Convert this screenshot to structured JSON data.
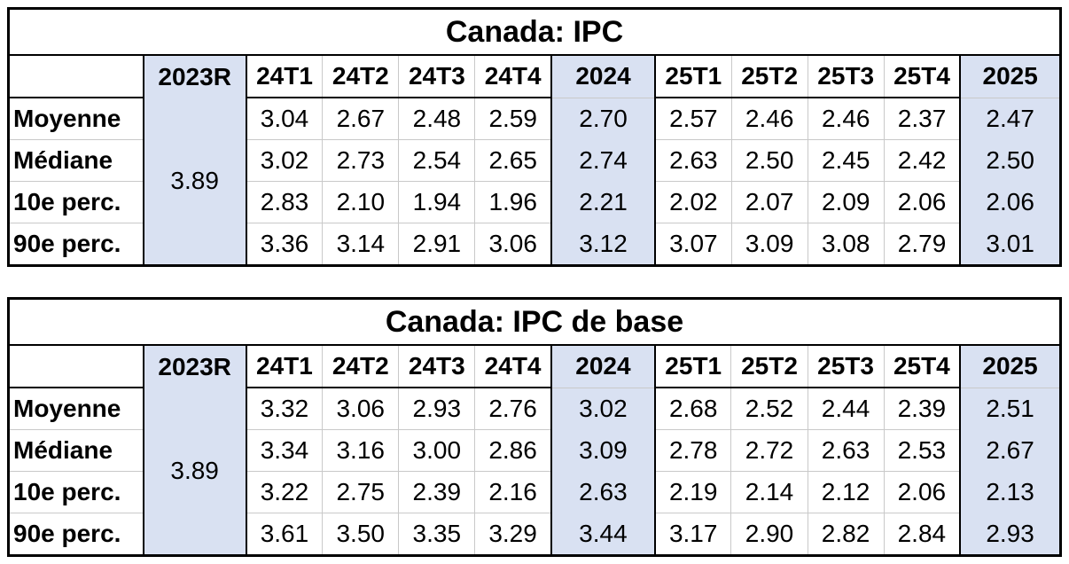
{
  "styles": {
    "accent_fill": "#d9e1f2",
    "grid_line": "#c9c9c9",
    "border": "#000000"
  },
  "tables": [
    {
      "title": "Canada: IPC",
      "header": [
        "",
        "2023R",
        "24T1",
        "24T2",
        "24T3",
        "24T4",
        "2024",
        "25T1",
        "25T2",
        "25T3",
        "25T4",
        "2025"
      ],
      "merged_2023R_value": "3.89",
      "rows": [
        {
          "label": "Moyenne",
          "values": [
            "3.04",
            "2.67",
            "2.48",
            "2.59",
            "2.70",
            "2.57",
            "2.46",
            "2.46",
            "2.37",
            "2.47"
          ]
        },
        {
          "label": "Médiane",
          "values": [
            "3.02",
            "2.73",
            "2.54",
            "2.65",
            "2.74",
            "2.63",
            "2.50",
            "2.45",
            "2.42",
            "2.50"
          ]
        },
        {
          "label": "10e perc.",
          "values": [
            "2.83",
            "2.10",
            "1.94",
            "1.96",
            "2.21",
            "2.02",
            "2.07",
            "2.09",
            "2.06",
            "2.06"
          ]
        },
        {
          "label": "90e perc.",
          "values": [
            "3.36",
            "3.14",
            "2.91",
            "3.06",
            "3.12",
            "3.07",
            "3.09",
            "3.08",
            "2.79",
            "3.01"
          ]
        }
      ]
    },
    {
      "title": "Canada: IPC de base",
      "header": [
        "",
        "2023R",
        "24T1",
        "24T2",
        "24T3",
        "24T4",
        "2024",
        "25T1",
        "25T2",
        "25T3",
        "25T4",
        "2025"
      ],
      "merged_2023R_value": "3.89",
      "rows": [
        {
          "label": "Moyenne",
          "values": [
            "3.32",
            "3.06",
            "2.93",
            "2.76",
            "3.02",
            "2.68",
            "2.52",
            "2.44",
            "2.39",
            "2.51"
          ]
        },
        {
          "label": "Médiane",
          "values": [
            "3.34",
            "3.16",
            "3.00",
            "2.86",
            "3.09",
            "2.78",
            "2.72",
            "2.63",
            "2.53",
            "2.67"
          ]
        },
        {
          "label": "10e perc.",
          "values": [
            "3.22",
            "2.75",
            "2.39",
            "2.16",
            "2.63",
            "2.19",
            "2.14",
            "2.12",
            "2.06",
            "2.13"
          ]
        },
        {
          "label": "90e perc.",
          "values": [
            "3.61",
            "3.50",
            "3.35",
            "3.29",
            "3.44",
            "3.17",
            "2.90",
            "2.82",
            "2.84",
            "2.93"
          ]
        }
      ]
    }
  ]
}
